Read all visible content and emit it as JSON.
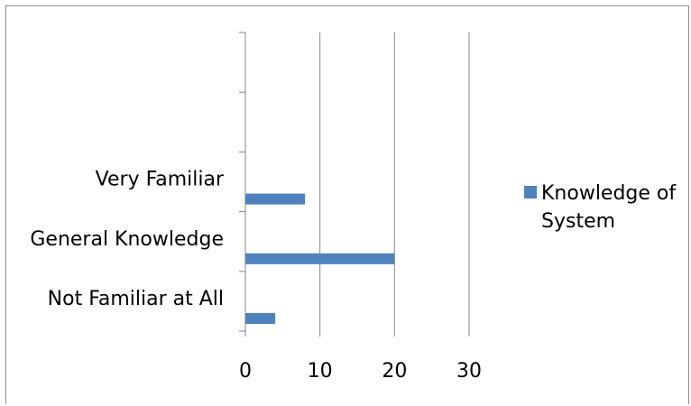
{
  "chart_data": {
    "type": "bar",
    "orientation": "horizontal",
    "categories": [
      "Not Familiar at All",
      "General Knowledge",
      "Very Familiar",
      "",
      ""
    ],
    "series": [
      {
        "name": "Knowledge of System",
        "values": [
          4,
          20,
          8,
          null,
          null
        ],
        "color": "#4f81bd"
      }
    ],
    "xlim": [
      0,
      30
    ],
    "x_ticks": [
      "0",
      "10",
      "20",
      "30"
    ],
    "grid": "vertical",
    "legend_position": "right",
    "title": "",
    "xlabel": "",
    "ylabel": ""
  },
  "legend": {
    "line1": "Knowledge of",
    "line2": "System"
  }
}
